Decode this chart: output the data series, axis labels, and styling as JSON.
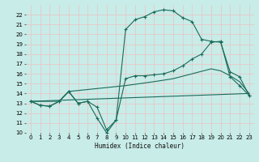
{
  "xlabel": "Humidex (Indice chaleur)",
  "bg_color": "#c8ece8",
  "grid_color": "#e8c8c8",
  "line_color": "#1a6b5a",
  "xlim": [
    -0.5,
    23.5
  ],
  "ylim": [
    10,
    23
  ],
  "xticks": [
    0,
    1,
    2,
    3,
    4,
    5,
    6,
    7,
    8,
    9,
    10,
    11,
    12,
    13,
    14,
    15,
    16,
    17,
    18,
    19,
    20,
    21,
    22,
    23
  ],
  "yticks": [
    10,
    11,
    12,
    13,
    14,
    15,
    16,
    17,
    18,
    19,
    20,
    21,
    22
  ],
  "series": [
    {
      "x": [
        0,
        1,
        2,
        3,
        4,
        5,
        6,
        7,
        8,
        9,
        10,
        11,
        12,
        13,
        14,
        15,
        16,
        17,
        18,
        19,
        20,
        21,
        22,
        23
      ],
      "y": [
        13.2,
        12.8,
        12.7,
        13.2,
        14.2,
        13.0,
        13.2,
        11.5,
        10.0,
        11.3,
        20.5,
        21.5,
        21.8,
        22.3,
        22.5,
        22.4,
        21.7,
        21.3,
        19.5,
        19.3,
        19.2,
        16.2,
        15.7,
        13.8
      ],
      "marker": true
    },
    {
      "x": [
        0,
        1,
        2,
        3,
        4,
        5,
        6,
        7,
        8,
        9,
        10,
        11,
        12,
        13,
        14,
        15,
        16,
        17,
        18,
        19,
        20,
        21,
        22,
        23
      ],
      "y": [
        13.2,
        12.8,
        12.7,
        13.2,
        14.2,
        13.0,
        13.2,
        12.6,
        10.3,
        11.3,
        15.5,
        15.8,
        15.8,
        15.9,
        16.0,
        16.3,
        16.8,
        17.5,
        18.0,
        19.2,
        19.3,
        15.7,
        14.8,
        13.8
      ],
      "marker": true
    },
    {
      "x": [
        0,
        3,
        4,
        10,
        13,
        15,
        17,
        19,
        20,
        21,
        22,
        23
      ],
      "y": [
        13.2,
        13.2,
        14.2,
        14.8,
        15.2,
        15.5,
        16.0,
        16.5,
        16.3,
        15.8,
        15.2,
        14.0
      ],
      "marker": false
    },
    {
      "x": [
        0,
        23
      ],
      "y": [
        13.2,
        14.0
      ],
      "marker": false
    }
  ]
}
